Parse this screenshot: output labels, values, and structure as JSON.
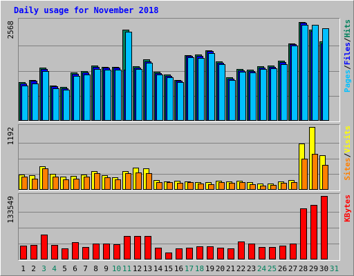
{
  "chart_data": {
    "type": "bar",
    "title": "Daily usage for November 2018",
    "categories": [
      "1",
      "2",
      "3",
      "4",
      "5",
      "6",
      "7",
      "8",
      "9",
      "10",
      "11",
      "12",
      "13",
      "14",
      "15",
      "16",
      "17",
      "18",
      "19",
      "20",
      "21",
      "22",
      "23",
      "24",
      "25",
      "26",
      "27",
      "28",
      "29",
      "30",
      "31"
    ],
    "weekend_days": [
      "3",
      "4",
      "10",
      "11",
      "17",
      "18",
      "24",
      "25",
      "31"
    ],
    "colors": {
      "background": "#c0c0c0",
      "panel": "#c0c0c0",
      "grid": "#808080",
      "title": "#0000ff",
      "hits": "#00805c",
      "files": "#0000ff",
      "pages": "#00c0ff",
      "visits": "#ffff00",
      "sites": "#ff8000",
      "kbytes": "#ff0000",
      "weekday_label": "#000000",
      "weekend_label": "#00805c"
    },
    "panels": [
      {
        "id": "hits-files-pages",
        "ymax_label": "2568",
        "ymax": 2568,
        "legend": [
          {
            "text": "Pages",
            "color": "#00c0ff"
          },
          {
            "text": "/",
            "color": "#000000"
          },
          {
            "text": "Files",
            "color": "#0000ff"
          },
          {
            "text": "/",
            "color": "#000000"
          },
          {
            "text": "Hits",
            "color": "#00805c"
          }
        ],
        "series": [
          {
            "name": "Hits",
            "color": "#00805c",
            "values": [
              1000,
              1050,
              1370,
              910,
              860,
              1240,
              1270,
              1410,
              1390,
              1390,
              2340,
              1400,
              1580,
              1260,
              1180,
              1050,
              1690,
              1700,
              1810,
              1530,
              1110,
              1330,
              1310,
              1400,
              1420,
              1540,
              1990,
              2540,
              2340,
              2030,
              0
            ]
          },
          {
            "name": "Files",
            "color": "#0000ff",
            "values": [
              960,
              1020,
              1330,
              880,
              830,
              1200,
              1240,
              1380,
              1360,
              1360,
              1310,
              1370,
              1530,
              1220,
              1150,
              1030,
              1660,
              1660,
              1790,
              1490,
              1080,
              1300,
              1280,
              1370,
              1390,
              1510,
              1970,
              2510,
              2300,
              1990,
              0
            ]
          },
          {
            "name": "Pages",
            "color": "#00c0ff",
            "values": [
              910,
              960,
              1280,
              840,
              790,
              1150,
              1190,
              1330,
              1310,
              1310,
              2290,
              1320,
              1480,
              1180,
              1110,
              990,
              1630,
              1620,
              1740,
              1450,
              1040,
              1260,
              1240,
              1330,
              1350,
              1460,
              1930,
              2470,
              2470,
              2380,
              0
            ]
          }
        ]
      },
      {
        "id": "visits-sites",
        "ymax_label": "1192",
        "ymax": 1192,
        "legend": [
          {
            "text": "Sites",
            "color": "#ff8000"
          },
          {
            "text": "/",
            "color": "#000000"
          },
          {
            "text": "Visits",
            "color": "#ffff00"
          }
        ],
        "series": [
          {
            "name": "Visits",
            "color": "#ffff00",
            "values": [
              290,
              270,
              450,
              300,
              250,
              260,
              290,
              350,
              270,
              240,
              360,
              420,
              400,
              180,
              160,
              170,
              160,
              150,
              140,
              170,
              160,
              170,
              150,
              120,
              120,
              160,
              180,
              880,
              1192,
              660,
              0
            ]
          },
          {
            "name": "Sites",
            "color": "#ff8000",
            "values": [
              250,
              210,
              400,
              250,
              200,
              210,
              250,
              310,
              230,
              190,
              310,
              330,
              310,
              140,
              140,
              130,
              140,
              120,
              110,
              140,
              130,
              140,
              110,
              80,
              90,
              130,
              140,
              590,
              680,
              470,
              0
            ]
          }
        ]
      },
      {
        "id": "kbytes",
        "ymax_label": "133549",
        "ymax": 133549,
        "legend": [
          {
            "text": "KBytes",
            "color": "#ff0000"
          }
        ],
        "series": [
          {
            "name": "KBytes",
            "color": "#ff0000",
            "values": [
              29000,
              31000,
              52000,
              30000,
              23000,
              37000,
              26000,
              34000,
              33000,
              32000,
              49000,
              49000,
              49000,
              24000,
              15000,
              23000,
              25000,
              27000,
              27000,
              25000,
              23000,
              38000,
              34000,
              26000,
              26000,
              29000,
              33000,
              107000,
              115000,
              133549,
              0
            ]
          }
        ]
      }
    ]
  }
}
